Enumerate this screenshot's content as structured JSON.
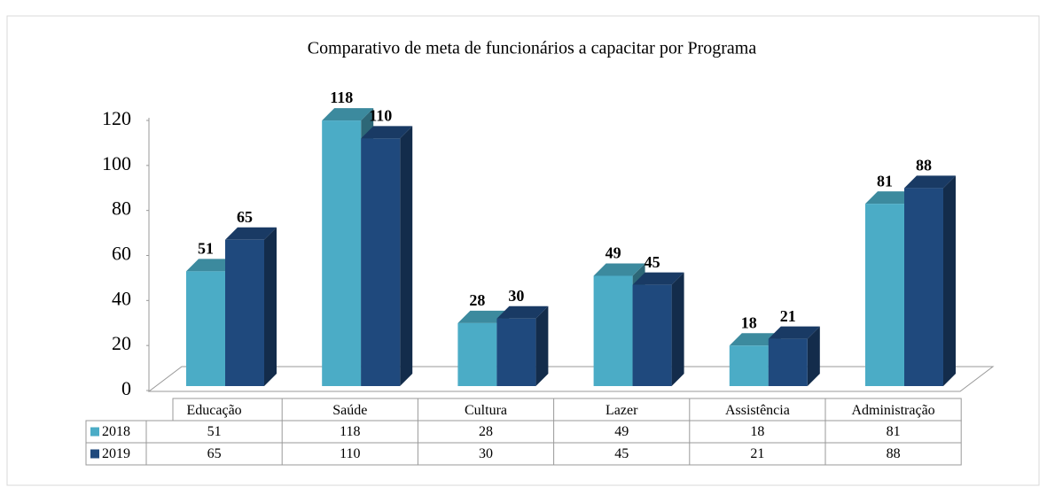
{
  "chart_data": {
    "type": "bar3d",
    "title": "Comparativo de meta de funcionários a capacitar por Programa",
    "categories": [
      "Educação",
      "Saúde",
      "Cultura",
      "Lazer",
      "Assistência",
      "Administração"
    ],
    "series": [
      {
        "name": "2018",
        "color": "#4bacc6",
        "values": [
          51,
          118,
          28,
          49,
          18,
          81
        ]
      },
      {
        "name": "2019",
        "color": "#1f497d",
        "values": [
          65,
          110,
          30,
          45,
          21,
          88
        ]
      }
    ],
    "ylim": [
      0,
      120
    ],
    "yticks": [
      0,
      20,
      40,
      60,
      80,
      100,
      120
    ],
    "grid": false,
    "data_table": true
  }
}
